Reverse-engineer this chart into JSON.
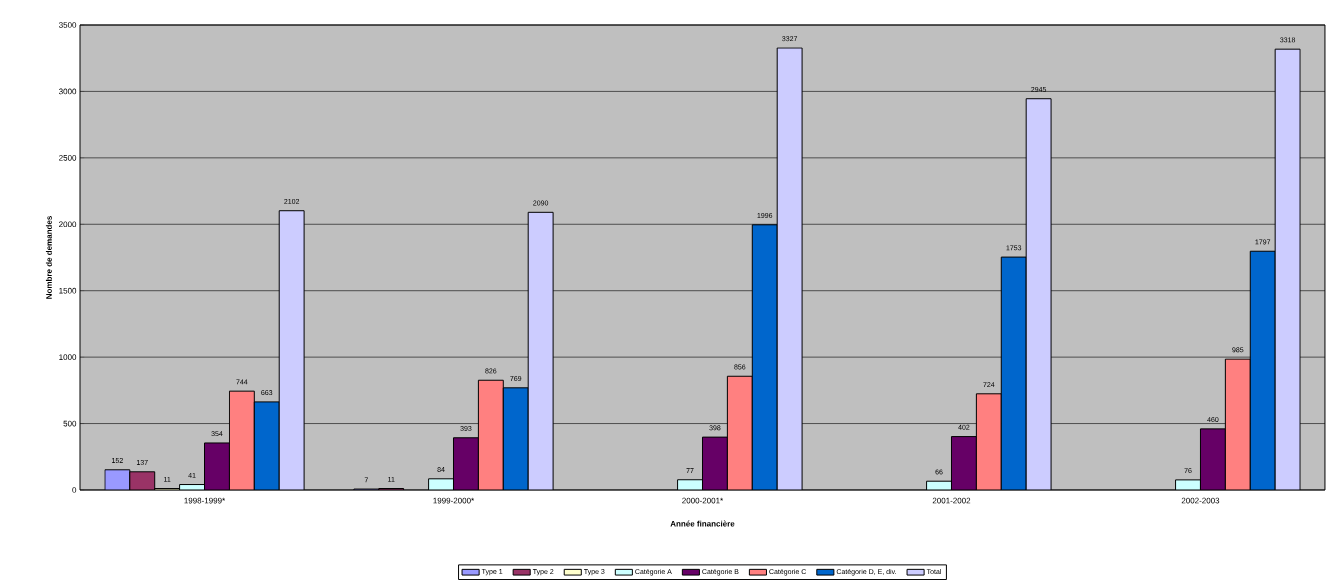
{
  "chart_data": {
    "type": "bar",
    "xlabel": "Année financière",
    "ylabel": "Nombre de demandes",
    "categories": [
      "1998-1999*",
      "1999-2000*",
      "2000-2001*",
      "2001-2002",
      "2002-2003"
    ],
    "series": [
      {
        "name": "Type 1",
        "color": "#9999ff",
        "values": [
          152,
          7,
          null,
          null,
          null
        ]
      },
      {
        "name": "Type 2",
        "color": "#993366",
        "values": [
          137,
          11,
          null,
          null,
          null
        ]
      },
      {
        "name": "Type 3",
        "color": "#ffffcc",
        "values": [
          11,
          null,
          null,
          null,
          null
        ]
      },
      {
        "name": "Catégorie A",
        "color": "#ccffff",
        "values": [
          41,
          84,
          77,
          66,
          76
        ]
      },
      {
        "name": "Catégorie B",
        "color": "#660066",
        "values": [
          354,
          393,
          398,
          402,
          460
        ]
      },
      {
        "name": "Catégorie C",
        "color": "#ff8080",
        "values": [
          744,
          826,
          856,
          724,
          985
        ]
      },
      {
        "name": "Catégorie D, E, div.",
        "color": "#0066cc",
        "values": [
          663,
          769,
          1996,
          1753,
          1797
        ]
      },
      {
        "name": "Total",
        "color": "#ccccff",
        "values": [
          2102,
          2090,
          3327,
          2945,
          3318
        ]
      }
    ],
    "ylim": [
      0,
      3500
    ],
    "yticks": [
      0,
      500,
      1000,
      1500,
      2000,
      2500,
      3000,
      3500
    ],
    "grid": "y",
    "legend": "bottom",
    "data_labels": true
  }
}
